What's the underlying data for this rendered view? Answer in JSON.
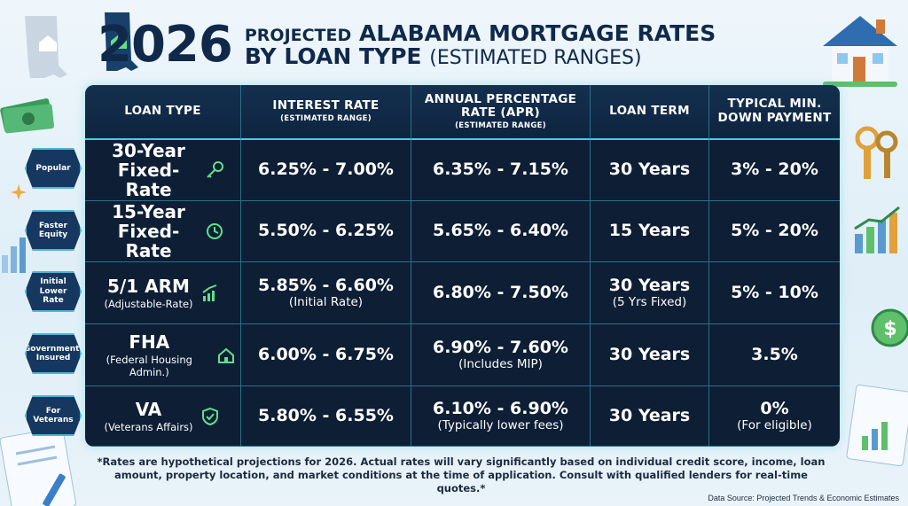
{
  "header": {
    "year": "2026",
    "line1_prefix": "PROJECTED",
    "line1_main": "ALABAMA MORTGAGE RATES",
    "line2_main": "BY LOAN TYPE",
    "line2_suffix": "(ESTIMATED RANGES)"
  },
  "table": {
    "headers": [
      {
        "label": "LOAN TYPE",
        "sub": ""
      },
      {
        "label": "INTEREST RATE",
        "sub": "(ESTIMATED RANGE)"
      },
      {
        "label": "ANNUAL PERCENTAGE RATE (APR)",
        "sub": "(ESTIMATED RANGE)"
      },
      {
        "label": "LOAN TERM",
        "sub": ""
      },
      {
        "label": "TYPICAL MIN. DOWN PAYMENT",
        "sub": ""
      }
    ],
    "rows": [
      {
        "badge": "Popular",
        "type": "30-Year Fixed-Rate",
        "type_sub": "",
        "icon": "key-icon",
        "rate": "6.25% - 7.00%",
        "rate_sub": "",
        "apr": "6.35% - 7.15%",
        "apr_sub": "",
        "term": "30 Years",
        "term_sub": "",
        "down": "3% - 20%",
        "down_sub": ""
      },
      {
        "badge": "Faster Equity",
        "type": "15-Year Fixed-Rate",
        "type_sub": "",
        "icon": "clock-icon",
        "rate": "5.50% - 6.25%",
        "rate_sub": "",
        "apr": "5.65% - 6.40%",
        "apr_sub": "",
        "term": "15 Years",
        "term_sub": "",
        "down": "5% - 20%",
        "down_sub": ""
      },
      {
        "badge": "Initial Lower Rate",
        "type": "5/1 ARM",
        "type_sub": "(Adjustable-Rate)",
        "icon": "chart-icon",
        "rate": "5.85% - 6.60%",
        "rate_sub": "(Initial Rate)",
        "apr": "6.80% - 7.50%",
        "apr_sub": "",
        "term": "30 Years",
        "term_sub": "(5 Yrs Fixed)",
        "down": "5% - 10%",
        "down_sub": ""
      },
      {
        "badge": "Government-Insured",
        "type": "FHA",
        "type_sub": "(Federal Housing Admin.)",
        "icon": "house-icon",
        "rate": "6.00% - 6.75%",
        "rate_sub": "",
        "apr": "6.90% - 7.60%",
        "apr_sub": "(Includes MIP)",
        "term": "30 Years",
        "term_sub": "",
        "down": "3.5%",
        "down_sub": ""
      },
      {
        "badge": "For Veterans",
        "type": "VA",
        "type_sub": "(Veterans Affairs)",
        "icon": "shield-check-icon",
        "rate": "5.80% - 6.55%",
        "rate_sub": "",
        "apr": "6.10% - 6.90%",
        "apr_sub": "(Typically lower fees)",
        "term": "30 Years",
        "term_sub": "",
        "down": "0%",
        "down_sub": "(For eligible)"
      }
    ]
  },
  "footer": {
    "note": "*Rates are hypothetical projections for 2026. Actual rates will vary significantly based on individual credit score, income, loan amount, property location, and market conditions at the time of application. Consult with qualified lenders for real-time quotes.*",
    "source": "Data Source: Projected Trends & Economic Estimates"
  },
  "colors": {
    "table_bg": "#0d1e35",
    "grid_line": "#2c6f8a",
    "accent_cyan": "#3fd0e0",
    "icon_green": "#5fe08a",
    "title": "#10294a"
  }
}
